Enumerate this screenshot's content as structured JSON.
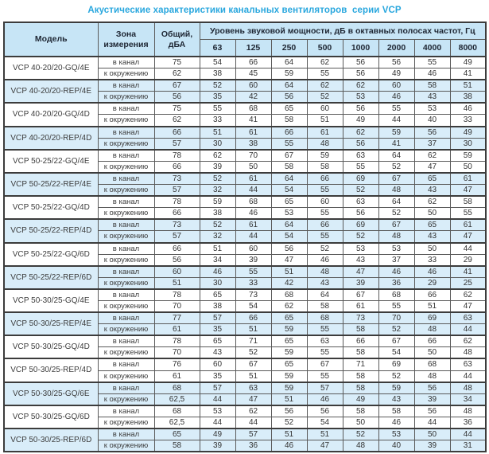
{
  "title": "Акустические характеристики канальных вентиляторов  серии VCP",
  "colors": {
    "title_blue": "#29a7de",
    "header_bg": "#c7e5f6",
    "row_shaded_bg": "#d9edf9",
    "border": "#3c3c3c"
  },
  "table": {
    "headers": {
      "model": "Модель",
      "zone": "Зона измерения",
      "total": "Общий, дБА",
      "spl": "Уровень звуковой мощности, дБ в октавных полосах частот, Гц",
      "frequencies": [
        "63",
        "125",
        "250",
        "500",
        "1000",
        "2000",
        "4000",
        "8000"
      ]
    },
    "zone_labels": {
      "duct": "в канал",
      "ambient": "к окружению"
    },
    "rows": [
      {
        "model": "VCP 40-20/20-GQ/4E",
        "shaded": false,
        "duct": {
          "total": "75",
          "bands": [
            54,
            66,
            64,
            62,
            56,
            56,
            55,
            49
          ]
        },
        "ambient": {
          "total": "62",
          "bands": [
            38,
            45,
            59,
            55,
            56,
            49,
            46,
            41
          ]
        }
      },
      {
        "model": "VCP 40-20/20-REP/4E",
        "shaded": true,
        "duct": {
          "total": "67",
          "bands": [
            52,
            60,
            64,
            62,
            62,
            60,
            58,
            51
          ]
        },
        "ambient": {
          "total": "56",
          "bands": [
            35,
            42,
            56,
            52,
            53,
            46,
            43,
            38
          ]
        }
      },
      {
        "model": "VCP 40-20/20-GQ/4D",
        "shaded": false,
        "duct": {
          "total": "75",
          "bands": [
            55,
            68,
            65,
            60,
            56,
            55,
            53,
            46
          ]
        },
        "ambient": {
          "total": "62",
          "bands": [
            33,
            41,
            58,
            51,
            49,
            44,
            40,
            33
          ]
        }
      },
      {
        "model": "VCP 40-20/20-REP/4D",
        "shaded": true,
        "duct": {
          "total": "66",
          "bands": [
            51,
            61,
            66,
            61,
            62,
            59,
            56,
            49
          ]
        },
        "ambient": {
          "total": "57",
          "bands": [
            30,
            38,
            55,
            48,
            56,
            41,
            37,
            30
          ]
        }
      },
      {
        "model": "VCP 50-25/22-GQ/4E",
        "shaded": false,
        "duct": {
          "total": "78",
          "bands": [
            62,
            70,
            67,
            59,
            63,
            64,
            62,
            59
          ]
        },
        "ambient": {
          "total": "66",
          "bands": [
            39,
            50,
            58,
            58,
            55,
            52,
            47,
            50
          ]
        }
      },
      {
        "model": "VCP 50-25/22-REP/4E",
        "shaded": true,
        "duct": {
          "total": "73",
          "bands": [
            52,
            61,
            64,
            66,
            69,
            67,
            65,
            61
          ]
        },
        "ambient": {
          "total": "57",
          "bands": [
            32,
            44,
            54,
            55,
            52,
            48,
            43,
            47
          ]
        }
      },
      {
        "model": "VCP 50-25/22-GQ/4D",
        "shaded": false,
        "duct": {
          "total": "78",
          "bands": [
            59,
            68,
            65,
            60,
            63,
            64,
            62,
            58
          ]
        },
        "ambient": {
          "total": "66",
          "bands": [
            38,
            46,
            53,
            55,
            56,
            52,
            50,
            55
          ]
        }
      },
      {
        "model": "VCP 50-25/22-REP/4D",
        "shaded": true,
        "duct": {
          "total": "73",
          "bands": [
            52,
            61,
            64,
            66,
            69,
            67,
            65,
            61
          ]
        },
        "ambient": {
          "total": "57",
          "bands": [
            32,
            44,
            54,
            55,
            52,
            48,
            43,
            47
          ]
        }
      },
      {
        "model": "VCP 50-25/22-GQ/6D",
        "shaded": false,
        "duct": {
          "total": "66",
          "bands": [
            51,
            60,
            56,
            52,
            53,
            53,
            50,
            44
          ]
        },
        "ambient": {
          "total": "56",
          "bands": [
            34,
            39,
            47,
            46,
            43,
            37,
            33,
            29
          ]
        }
      },
      {
        "model": "VCP 50-25/22-REP/6D",
        "shaded": true,
        "duct": {
          "total": "60",
          "bands": [
            46,
            55,
            51,
            48,
            47,
            46,
            46,
            41
          ]
        },
        "ambient": {
          "total": "51",
          "bands": [
            30,
            33,
            42,
            43,
            39,
            36,
            29,
            25
          ]
        }
      },
      {
        "model": "VCP 50-30/25-GQ/4E",
        "shaded": false,
        "duct": {
          "total": "78",
          "bands": [
            65,
            73,
            68,
            64,
            67,
            68,
            66,
            62
          ]
        },
        "ambient": {
          "total": "70",
          "bands": [
            38,
            54,
            62,
            58,
            61,
            55,
            51,
            47
          ]
        }
      },
      {
        "model": "VCP 50-30/25-REP/4E",
        "shaded": true,
        "duct": {
          "total": "77",
          "bands": [
            57,
            66,
            65,
            68,
            73,
            70,
            69,
            63
          ]
        },
        "ambient": {
          "total": "61",
          "bands": [
            35,
            51,
            59,
            55,
            58,
            52,
            48,
            44
          ]
        }
      },
      {
        "model": "VCP 50-30/25-GQ/4D",
        "shaded": false,
        "duct": {
          "total": "78",
          "bands": [
            65,
            71,
            65,
            63,
            66,
            67,
            66,
            62
          ]
        },
        "ambient": {
          "total": "70",
          "bands": [
            43,
            52,
            59,
            55,
            58,
            54,
            50,
            48
          ]
        }
      },
      {
        "model": "VCP 50-30/25-REP/4D",
        "shaded": false,
        "duct": {
          "total": "76",
          "bands": [
            60,
            67,
            65,
            67,
            71,
            69,
            68,
            63
          ]
        },
        "ambient": {
          "total": "61",
          "bands": [
            35,
            51,
            59,
            55,
            58,
            52,
            48,
            44
          ]
        }
      },
      {
        "model": "VCP 50-30/25-GQ/6E",
        "shaded": true,
        "duct": {
          "total": "68",
          "bands": [
            57,
            63,
            59,
            57,
            58,
            59,
            56,
            48
          ]
        },
        "ambient": {
          "total": "62,5",
          "bands": [
            44,
            47,
            51,
            46,
            49,
            43,
            39,
            34
          ]
        }
      },
      {
        "model": "VCP 50-30/25-GQ/6D",
        "shaded": false,
        "duct": {
          "total": "68",
          "bands": [
            53,
            62,
            56,
            56,
            58,
            58,
            56,
            48
          ]
        },
        "ambient": {
          "total": "62,5",
          "bands": [
            44,
            44,
            52,
            54,
            50,
            46,
            44,
            36
          ]
        }
      },
      {
        "model": "VCP 50-30/25-REP/6D",
        "shaded": true,
        "duct": {
          "total": "65",
          "bands": [
            49,
            57,
            51,
            51,
            52,
            53,
            50,
            44
          ]
        },
        "ambient": {
          "total": "58",
          "bands": [
            39,
            36,
            46,
            47,
            48,
            40,
            39,
            31
          ]
        }
      }
    ]
  }
}
